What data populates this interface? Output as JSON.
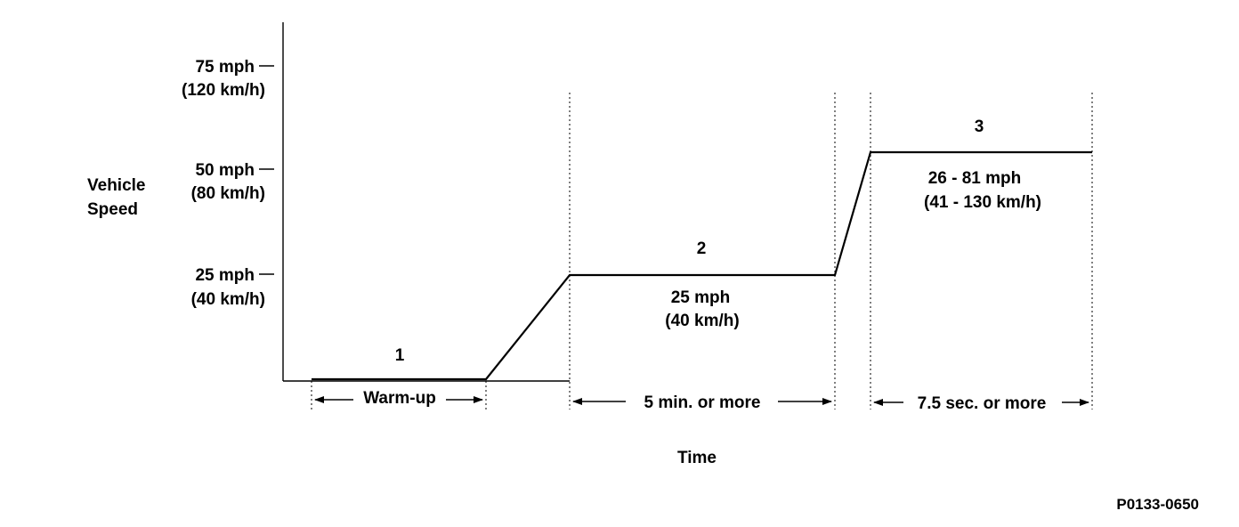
{
  "y_axis": {
    "label_line1": "Vehicle",
    "label_line2": "Speed",
    "ticks": [
      {
        "mph": "75 mph",
        "kmh": "(120 km/h)"
      },
      {
        "mph": "50 mph",
        "kmh": "(80 km/h)"
      },
      {
        "mph": "25 mph",
        "kmh": "(40 km/h)"
      }
    ]
  },
  "x_axis": {
    "label": "Time"
  },
  "phases": [
    {
      "number": "1",
      "duration": "Warm-up"
    },
    {
      "number": "2",
      "speed_line1": "25 mph",
      "speed_line2": "(40 km/h)",
      "duration": "5 min. or more"
    },
    {
      "number": "3",
      "speed_line1": "26 - 81 mph",
      "speed_line2": "(41 - 130 km/h)",
      "duration": "7.5 sec. or more"
    }
  ],
  "figure_id": "P0133-0650"
}
